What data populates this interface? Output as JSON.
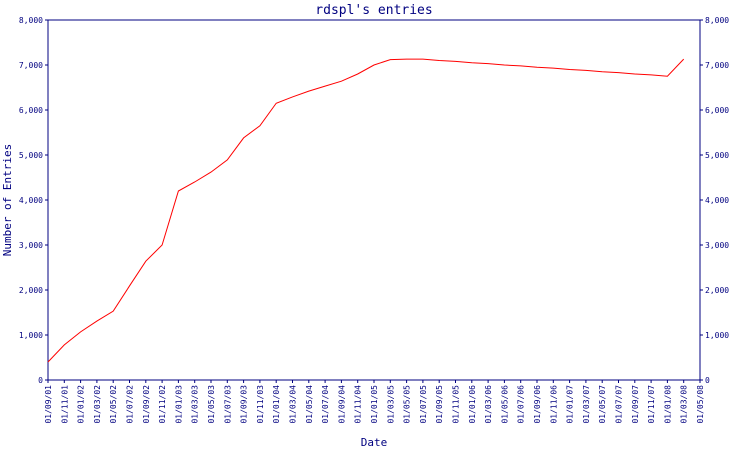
{
  "chart_data": {
    "type": "line",
    "title": "rdspl's entries",
    "x_label": "Date",
    "y_label": "Number of Entries",
    "categories": [
      "01/09/01",
      "01/11/01",
      "01/01/02",
      "01/03/02",
      "01/05/02",
      "01/07/02",
      "01/09/02",
      "01/11/02",
      "01/01/03",
      "01/03/03",
      "01/05/03",
      "01/07/03",
      "01/09/03",
      "01/11/03",
      "01/01/04",
      "01/03/04",
      "01/05/04",
      "01/07/04",
      "01/09/04",
      "01/11/04",
      "01/01/05",
      "01/03/05",
      "01/05/05",
      "01/07/05",
      "01/09/05",
      "01/11/05",
      "01/01/06",
      "01/03/06",
      "01/05/06",
      "01/07/06",
      "01/09/06",
      "01/11/06",
      "01/01/07",
      "01/03/07",
      "01/05/07",
      "01/07/07",
      "01/09/07",
      "01/11/07",
      "01/01/08",
      "01/03/08",
      "01/05/08"
    ],
    "series": [
      {
        "name": "entries",
        "color": "#ff0000",
        "values": [
          400,
          780,
          1070,
          1310,
          1530,
          2090,
          2640,
          3000,
          4200,
          4400,
          4620,
          4890,
          5380,
          5650,
          6150,
          6290,
          6420,
          6530,
          6640,
          6800,
          7000,
          7120,
          7130,
          7130,
          7100,
          7080,
          7050,
          7030,
          7000,
          6980,
          6950,
          6930,
          6900,
          6880,
          6850,
          6830,
          6800,
          6780,
          6750,
          7130,
          null
        ]
      }
    ],
    "ylim": [
      0,
      8000
    ],
    "yticks": [
      0,
      {
        "value": 1000,
        "label": "1,000"
      },
      {
        "value": 2000,
        "label": "2,000"
      },
      {
        "value": 3000,
        "label": "3,000"
      },
      {
        "value": 4000,
        "label": "4,000"
      },
      {
        "value": 5000,
        "label": "5,000"
      },
      {
        "value": 6000,
        "label": "6,000"
      },
      {
        "value": 7000,
        "label": "7,000"
      },
      {
        "value": 8000,
        "label": "8,000"
      }
    ],
    "axis_color": "#000080"
  }
}
